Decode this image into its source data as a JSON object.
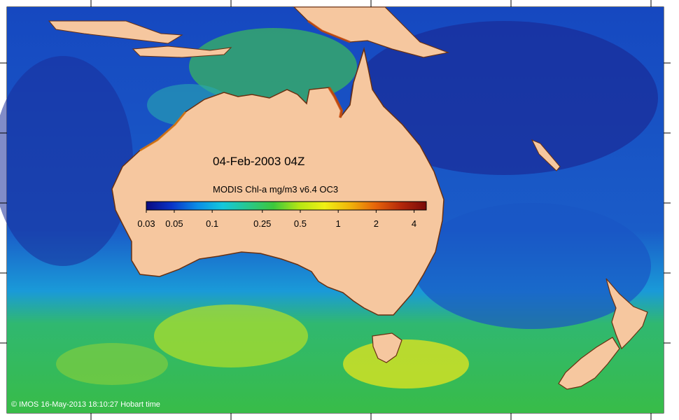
{
  "map": {
    "date_label": "04-Feb-2003 04Z",
    "colorbar": {
      "title": "MODIS Chl-a mg/m3 v6.4 OC3",
      "scale": "log",
      "range": [
        0.03,
        5
      ],
      "ticks": [
        {
          "value": 0.03,
          "label": "0.03"
        },
        {
          "value": 0.05,
          "label": "0.05"
        },
        {
          "value": 0.1,
          "label": "0.1"
        },
        {
          "value": 0.25,
          "label": "0.25"
        },
        {
          "value": 0.5,
          "label": "0.5"
        },
        {
          "value": 1,
          "label": "1"
        },
        {
          "value": 2,
          "label": "2"
        },
        {
          "value": 4,
          "label": "4"
        }
      ],
      "colors": [
        "#0a0a80",
        "#0a34c8",
        "#0a8ce6",
        "#14c8dc",
        "#28c88c",
        "#3cc83c",
        "#b4e614",
        "#f0f014",
        "#f0b40a",
        "#e6640a",
        "#b4280a",
        "#780a0a"
      ]
    },
    "copyright": "© IMOS 16-May-2013 18:10:27 Hobart time",
    "colors": {
      "land": "#f6c79f",
      "deep_ocean": "#1436b4",
      "mid_ocean": "#1a78d2",
      "southern_ocean": "#3cb44a",
      "high_chl": "#f0e614"
    }
  }
}
